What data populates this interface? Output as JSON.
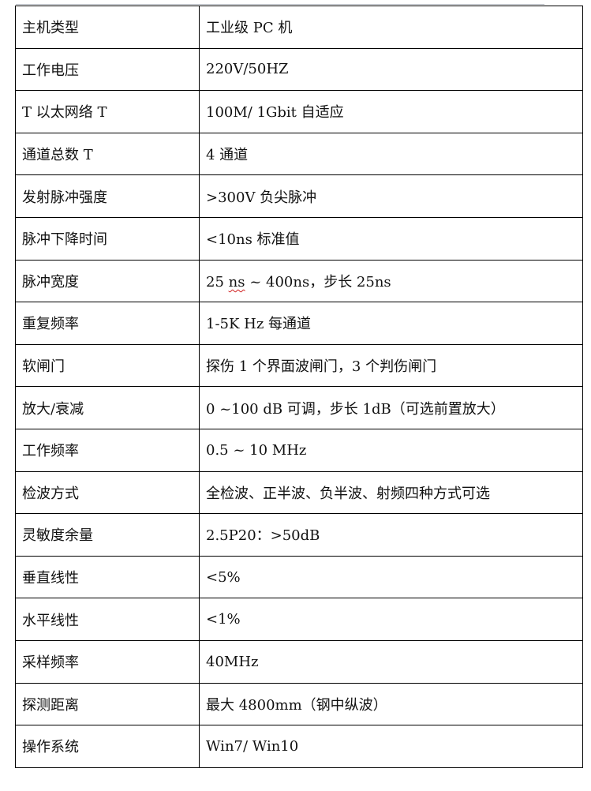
{
  "rows": [
    {
      "label": "主机类型",
      "value": "工业级 PC 机"
    },
    {
      "label": "工作电压",
      "value": "220V/50HZ"
    },
    {
      "label": "T 以太网络 T",
      "value": "100M/ 1Gbit 自适应"
    },
    {
      "label": "通道总数 T",
      "value": "4 通道"
    },
    {
      "label": "发射脉冲强度",
      "value": ">300V 负尖脉冲"
    },
    {
      "label": "脉冲下降时间",
      "value": "<10ns 标准值"
    },
    {
      "label": "脉冲宽度",
      "value_parts": [
        "25 ",
        "ns",
        " ~ 400ns，步长 25ns"
      ]
    },
    {
      "label": "重复频率",
      "value": "1-5K Hz 每通道"
    },
    {
      "label": "软闸门",
      "value": "探伤 1 个界面波闸门，3 个判伤闸门"
    },
    {
      "label": "放大/衰减",
      "value": "0 ~100 dB 可调，步长 1dB（可选前置放大）"
    },
    {
      "label": "工作频率",
      "value": "0.5 ~ 10 MHz"
    },
    {
      "label": "检波方式",
      "value": "全检波、正半波、负半波、射频四种方式可选"
    },
    {
      "label": "灵敏度余量",
      "value": "2.5P20：>50dB"
    },
    {
      "label": "垂直线性",
      "value": "<5%"
    },
    {
      "label": "水平线性",
      "value": "<1%"
    },
    {
      "label": "采样频率",
      "value": "40MHz"
    },
    {
      "label": "探测距离",
      "value": "最大 4800mm（钢中纵波）"
    },
    {
      "label": "操作系统",
      "value": "Win7/ Win10"
    }
  ]
}
